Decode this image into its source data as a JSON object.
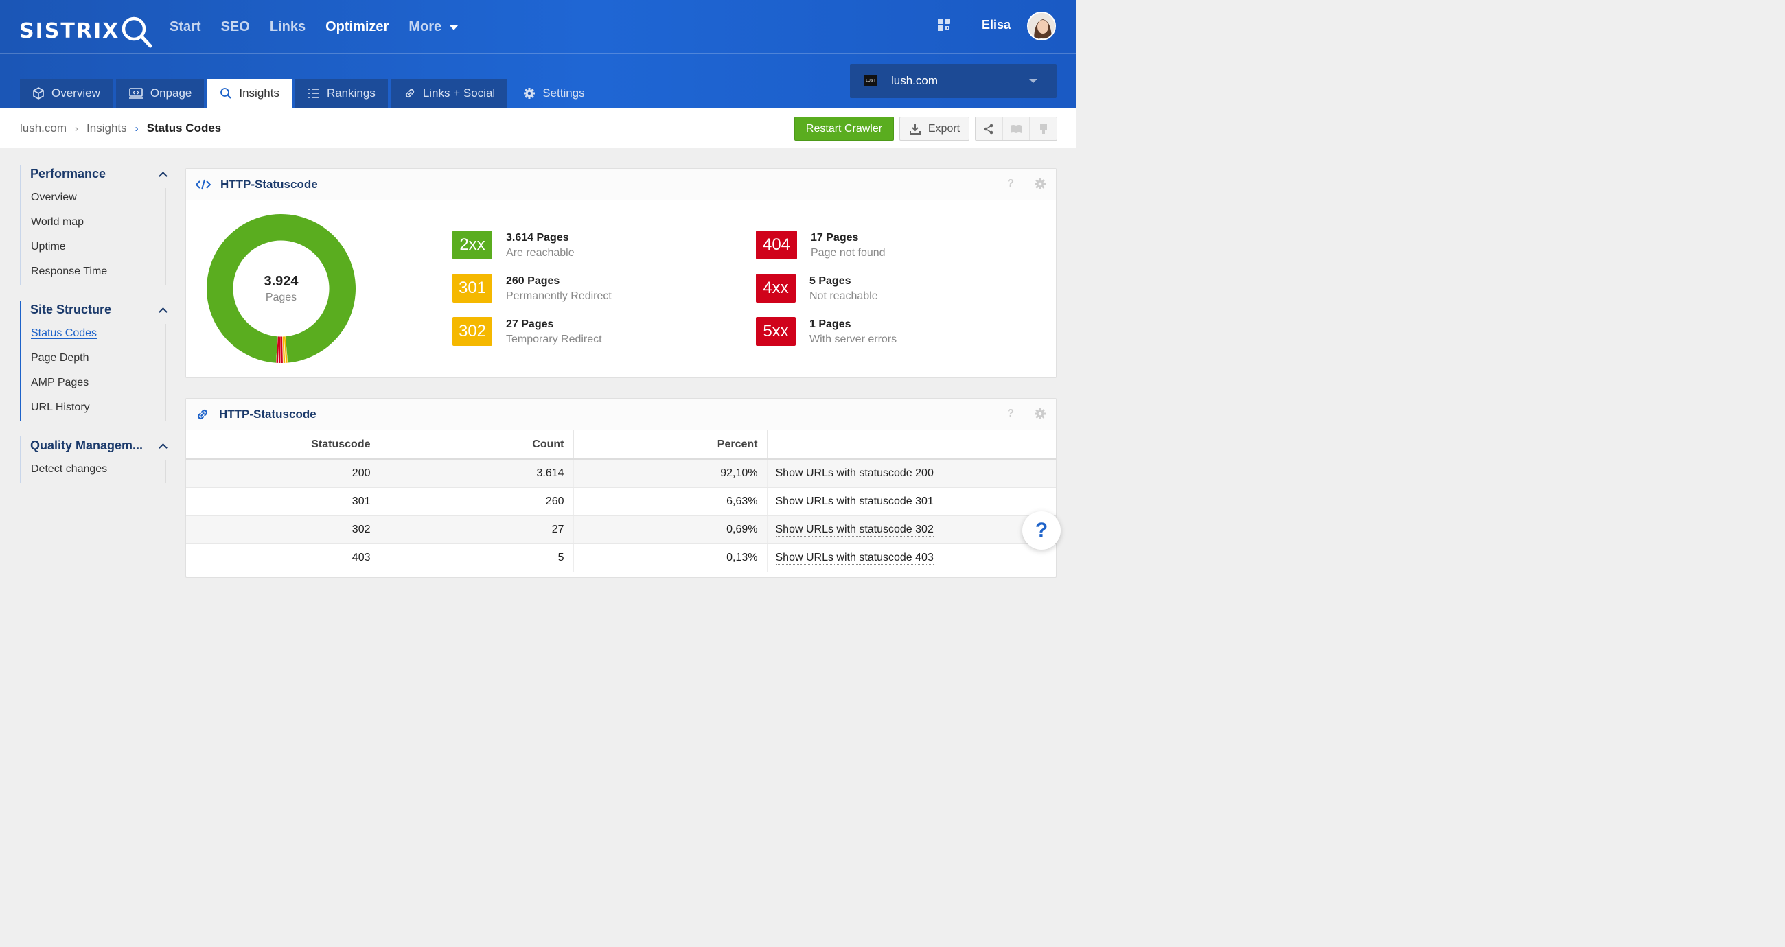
{
  "header": {
    "logo": "SISTRIX",
    "nav": [
      "Start",
      "SEO",
      "Links",
      "Optimizer",
      "More"
    ],
    "active_nav": "Optimizer",
    "user": "Elisa"
  },
  "tabs": [
    {
      "label": "Overview",
      "icon": "cube-icon"
    },
    {
      "label": "Onpage",
      "icon": "monitor-code-icon"
    },
    {
      "label": "Insights",
      "icon": "search-icon"
    },
    {
      "label": "Rankings",
      "icon": "list-icon"
    },
    {
      "label": "Links + Social",
      "icon": "link-icon"
    },
    {
      "label": "Settings",
      "icon": "gear-icon"
    }
  ],
  "domain_selector": {
    "value": "lush.com",
    "logo_text": "LUSH"
  },
  "breadcrumb": {
    "items": [
      "lush.com",
      "Insights"
    ],
    "current": "Status Codes"
  },
  "toolbar": {
    "restart": "Restart Crawler",
    "export": "Export"
  },
  "sidebar": {
    "groups": [
      {
        "title": "Performance",
        "items": [
          "Overview",
          "World map",
          "Uptime",
          "Response Time"
        ]
      },
      {
        "title": "Site Structure",
        "items": [
          "Status Codes",
          "Page Depth",
          "AMP Pages",
          "URL History"
        ]
      },
      {
        "title": "Quality Managem...",
        "items": [
          "Detect changes"
        ]
      }
    ],
    "active_item": "Status Codes"
  },
  "panel1": {
    "title": "HTTP-Statuscode",
    "total": "3.924",
    "total_label": "Pages",
    "stats": [
      {
        "code": "2xx",
        "pages": "3.614 Pages",
        "desc": "Are reachable",
        "color": "#5aad1f"
      },
      {
        "code": "301",
        "pages": "260 Pages",
        "desc": "Permanently Redirect",
        "color": "#f5b800"
      },
      {
        "code": "302",
        "pages": "27 Pages",
        "desc": "Temporary Redirect",
        "color": "#f5b800"
      },
      {
        "code": "404",
        "pages": "17 Pages",
        "desc": "Page not found",
        "color": "#d0021b"
      },
      {
        "code": "4xx",
        "pages": "5 Pages",
        "desc": "Not reachable",
        "color": "#d0021b"
      },
      {
        "code": "5xx",
        "pages": "1 Pages",
        "desc": "With server errors",
        "color": "#d0021b"
      }
    ]
  },
  "panel2": {
    "title": "HTTP-Statuscode",
    "columns": [
      "Statuscode",
      "Count",
      "Percent",
      ""
    ],
    "rows": [
      {
        "code": "200",
        "count": "3.614",
        "percent": "92,10%",
        "link": "Show URLs with statuscode 200"
      },
      {
        "code": "301",
        "count": "260",
        "percent": "6,63%",
        "link": "Show URLs with statuscode 301"
      },
      {
        "code": "302",
        "count": "27",
        "percent": "0,69%",
        "link": "Show URLs with statuscode 302"
      },
      {
        "code": "403",
        "count": "5",
        "percent": "0,13%",
        "link": "Show URLs with statuscode 403"
      }
    ]
  },
  "help": "?"
}
